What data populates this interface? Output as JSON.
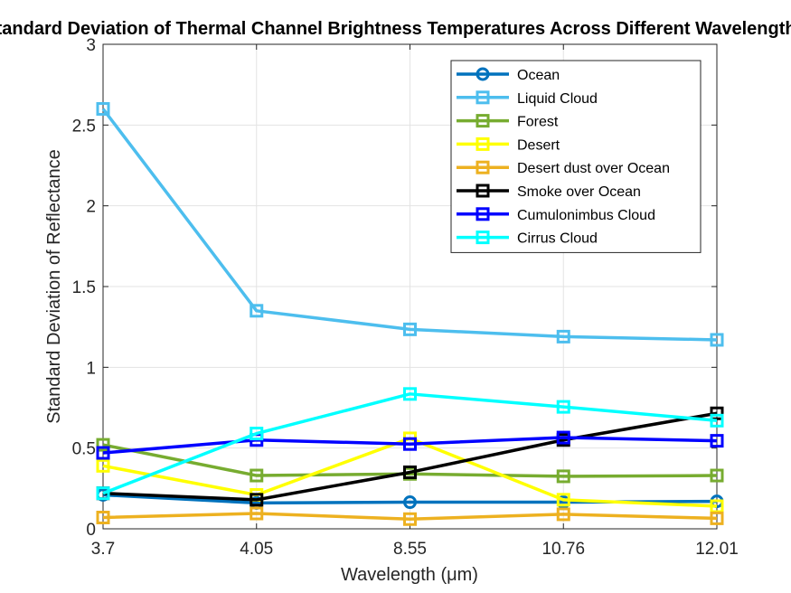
{
  "chart_data": {
    "type": "line",
    "title": "Standard Deviation of Thermal Channel Brightness Temperatures Across Different Wavelengths",
    "xlabel": "Wavelength (μm)",
    "ylabel": "Standard Deviation of Reflectance",
    "categories": [
      "3.7",
      "4.05",
      "8.55",
      "10.76",
      "12.01"
    ],
    "ylim": [
      0,
      3
    ],
    "yticks": [
      "0",
      "0.5",
      "1",
      "1.5",
      "2",
      "2.5",
      "3"
    ],
    "grid": true,
    "legend_position": "top-right",
    "series": [
      {
        "name": "Ocean",
        "color": "#0072BD",
        "marker": "circle",
        "values": [
          0.21,
          0.16,
          0.165,
          0.165,
          0.17
        ]
      },
      {
        "name": "Liquid Cloud",
        "color": "#4DBEEE",
        "marker": "square",
        "values": [
          2.6,
          1.35,
          1.235,
          1.19,
          1.17
        ]
      },
      {
        "name": "Forest",
        "color": "#77AC30",
        "marker": "square",
        "values": [
          0.52,
          0.33,
          0.34,
          0.325,
          0.33
        ]
      },
      {
        "name": "Desert",
        "color": "#FFFF00",
        "marker": "square",
        "values": [
          0.39,
          0.21,
          0.56,
          0.18,
          0.14
        ]
      },
      {
        "name": "Desert dust over Ocean",
        "color": "#EDB120",
        "marker": "square",
        "values": [
          0.07,
          0.095,
          0.06,
          0.09,
          0.065
        ]
      },
      {
        "name": "Smoke over Ocean",
        "color": "#000000",
        "marker": "square",
        "values": [
          0.22,
          0.18,
          0.35,
          0.55,
          0.715
        ]
      },
      {
        "name": "Cumulonimbus Cloud",
        "color": "#0000FF",
        "marker": "square",
        "values": [
          0.47,
          0.55,
          0.525,
          0.565,
          0.545
        ]
      },
      {
        "name": "Cirrus Cloud",
        "color": "#00FFFF",
        "marker": "square",
        "values": [
          0.22,
          0.59,
          0.835,
          0.755,
          0.67
        ]
      }
    ]
  }
}
